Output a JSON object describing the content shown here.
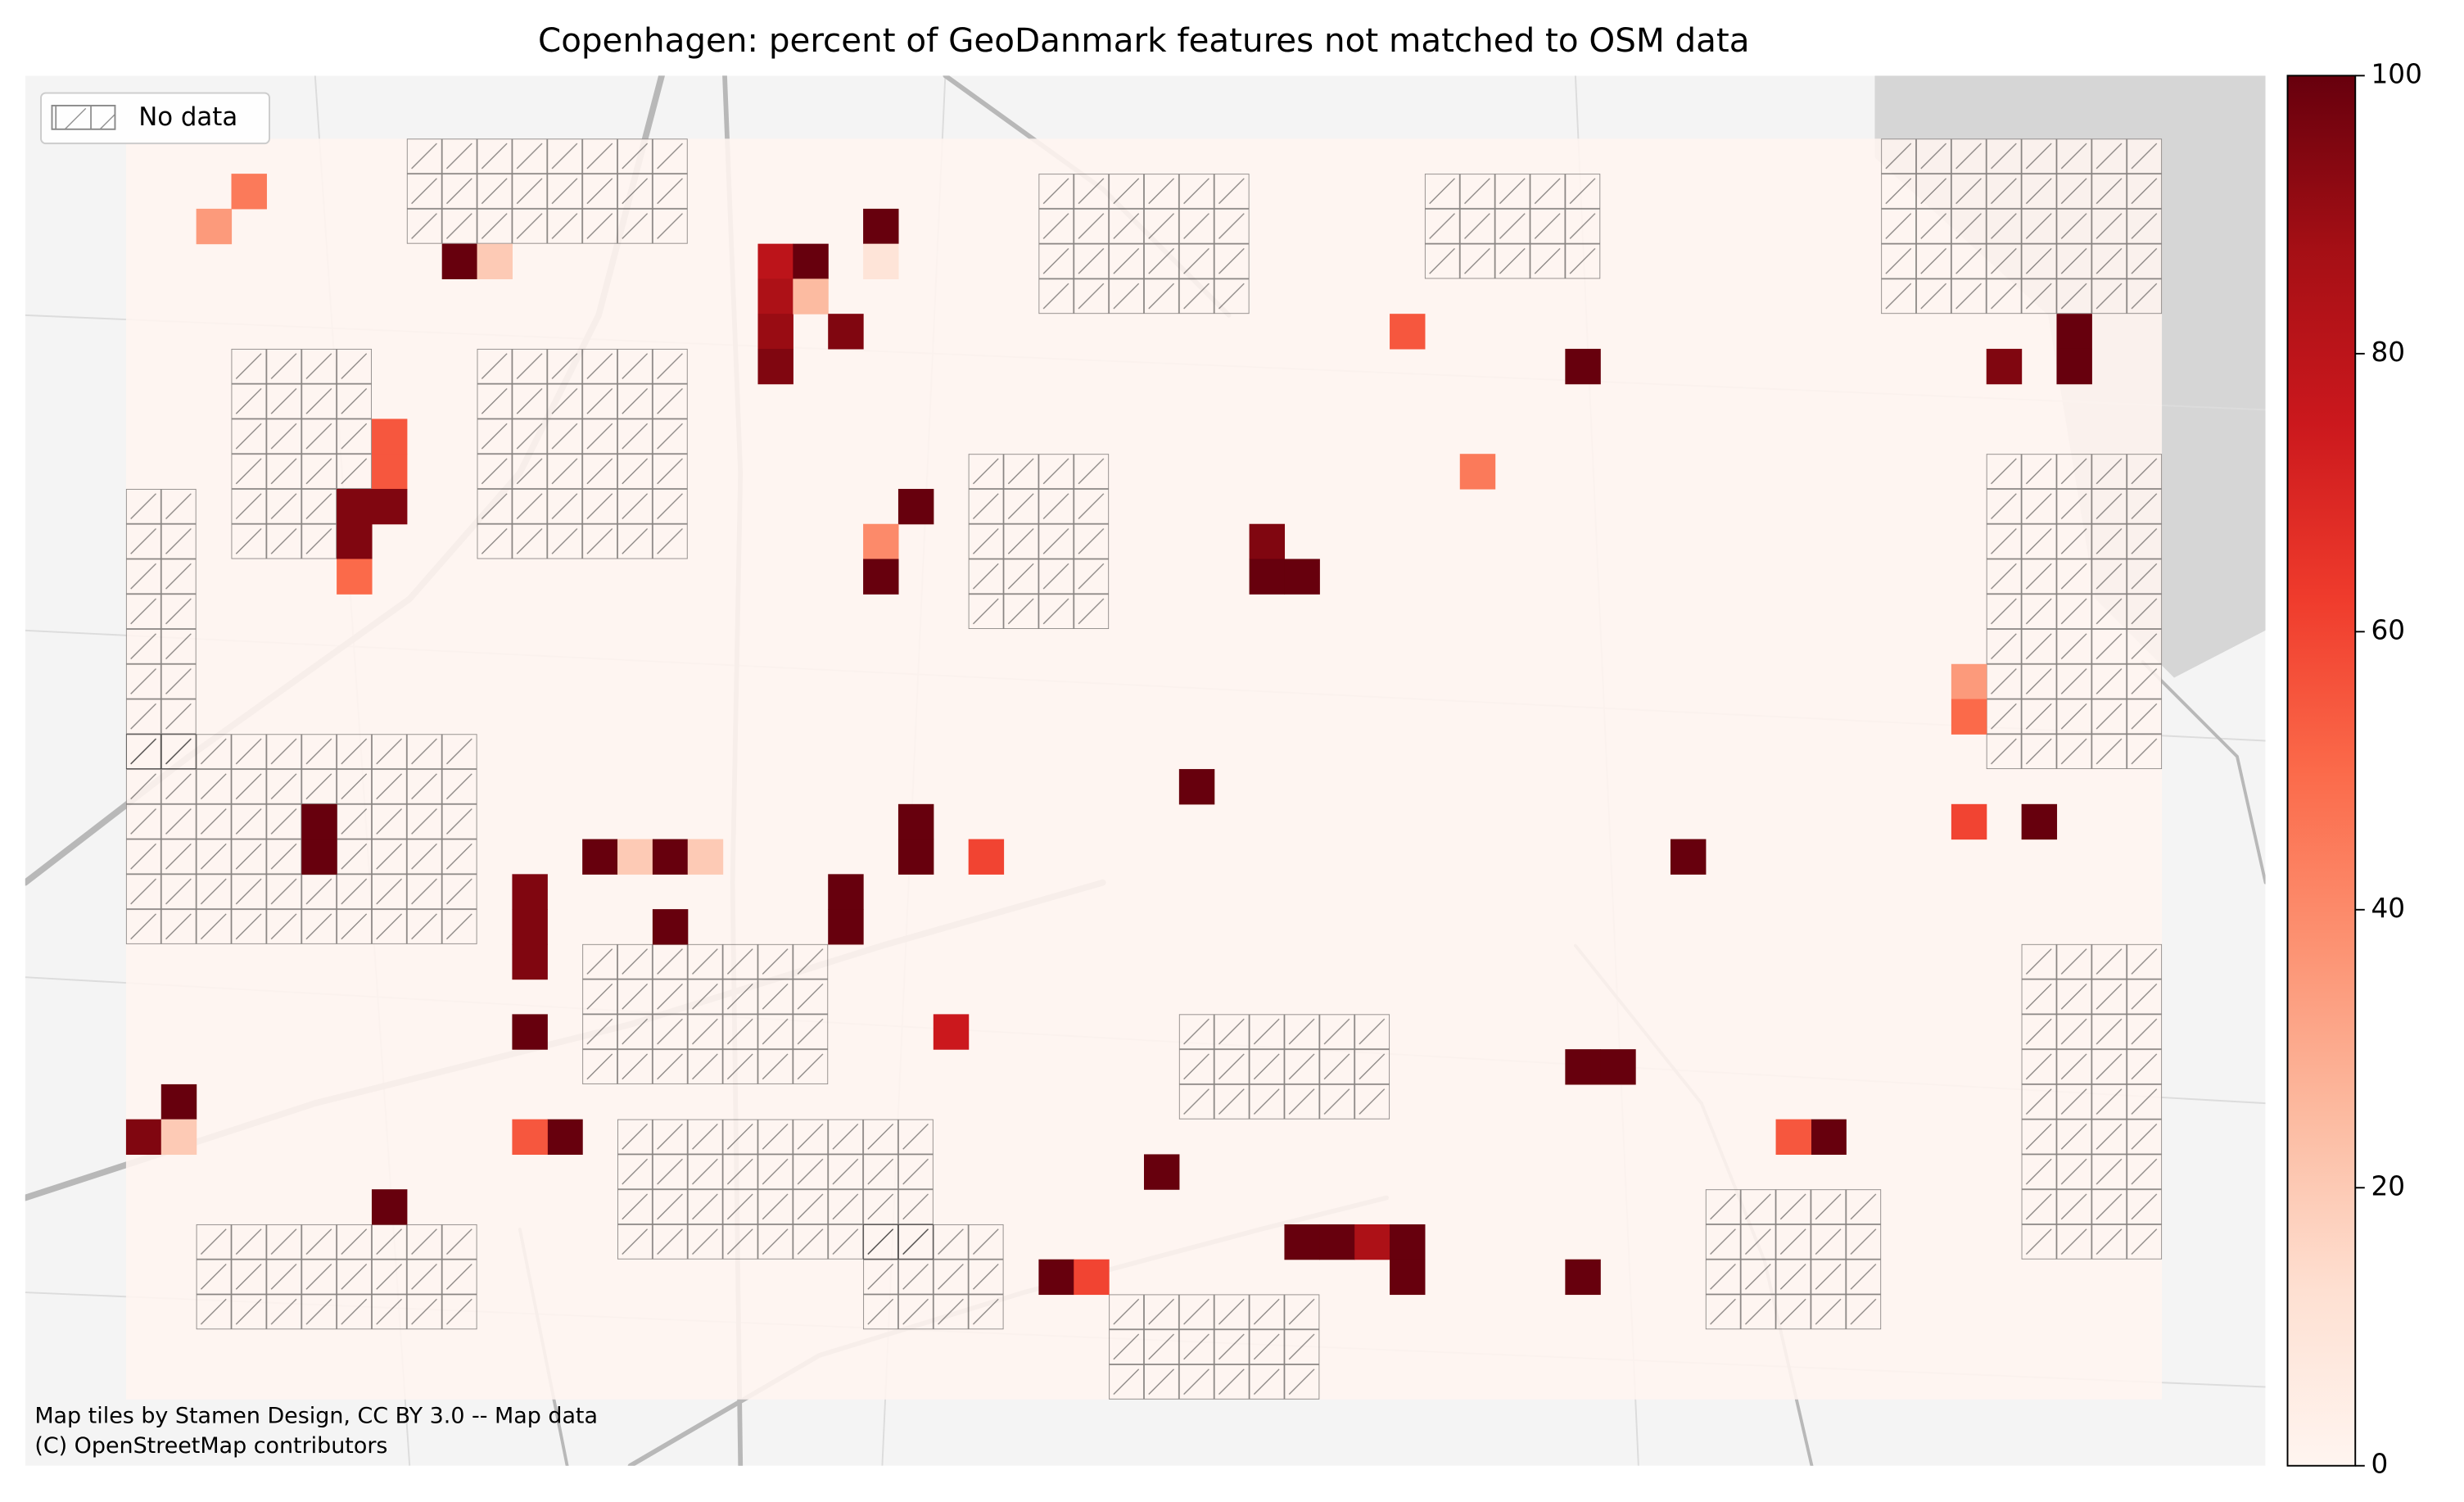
{
  "chart_data": {
    "type": "grid-map",
    "title": "Copenhagen: percent of GeoDanmark features not matched to OSM data",
    "legend_label": "No data",
    "legend_position": "upper left",
    "attribution": [
      "Map tiles by Stamen Design, CC BY 3.0 -- Map data",
      "(C) OpenStreetMap contributors"
    ],
    "grid_cols": 58,
    "grid_rows": 36,
    "colormap": [
      "#fff5f0",
      "#fee0d2",
      "#fcbba1",
      "#fc9272",
      "#fb6a4a",
      "#ef3b2c",
      "#cb181d",
      "#a50f15",
      "#67000d"
    ],
    "ylim": [
      0,
      100
    ],
    "yticks": [
      0,
      20,
      40,
      60,
      80,
      100
    ],
    "cells": [
      {
        "col": 1,
        "row": 27,
        "value": 100
      },
      {
        "col": 0,
        "row": 28,
        "value": 95
      },
      {
        "col": 1,
        "row": 28,
        "value": 20
      },
      {
        "col": 3,
        "row": 1,
        "value": 45
      },
      {
        "col": 2,
        "row": 2,
        "value": 35
      },
      {
        "col": 9,
        "row": 3,
        "value": 100
      },
      {
        "col": 10,
        "row": 3,
        "value": 20
      },
      {
        "col": 18,
        "row": 3,
        "value": 80
      },
      {
        "col": 18,
        "row": 4,
        "value": 85
      },
      {
        "col": 18,
        "row": 5,
        "value": 90
      },
      {
        "col": 18,
        "row": 6,
        "value": 95
      },
      {
        "col": 19,
        "row": 3,
        "value": 100
      },
      {
        "col": 19,
        "row": 4,
        "value": 25
      },
      {
        "col": 20,
        "row": 5,
        "value": 95
      },
      {
        "col": 21,
        "row": 2,
        "value": 100
      },
      {
        "col": 21,
        "row": 3,
        "value": 10
      },
      {
        "col": 7,
        "row": 8,
        "value": 55
      },
      {
        "col": 7,
        "row": 9,
        "value": 55
      },
      {
        "col": 6,
        "row": 10,
        "value": 95
      },
      {
        "col": 7,
        "row": 10,
        "value": 95
      },
      {
        "col": 6,
        "row": 11,
        "value": 95
      },
      {
        "col": 6,
        "row": 12,
        "value": 50
      },
      {
        "col": 22,
        "row": 10,
        "value": 100
      },
      {
        "col": 21,
        "row": 11,
        "value": 40
      },
      {
        "col": 21,
        "row": 12,
        "value": 100
      },
      {
        "col": 32,
        "row": 11,
        "value": 95
      },
      {
        "col": 32,
        "row": 12,
        "value": 100
      },
      {
        "col": 33,
        "row": 12,
        "value": 100
      },
      {
        "col": 36,
        "row": 5,
        "value": 55
      },
      {
        "col": 41,
        "row": 6,
        "value": 100
      },
      {
        "col": 53,
        "row": 6,
        "value": 95
      },
      {
        "col": 55,
        "row": 5,
        "value": 100
      },
      {
        "col": 55,
        "row": 6,
        "value": 100
      },
      {
        "col": 38,
        "row": 9,
        "value": 45
      },
      {
        "col": 5,
        "row": 19,
        "value": 100
      },
      {
        "col": 5,
        "row": 20,
        "value": 100
      },
      {
        "col": 13,
        "row": 20,
        "value": 100
      },
      {
        "col": 14,
        "row": 20,
        "value": 20
      },
      {
        "col": 15,
        "row": 20,
        "value": 100
      },
      {
        "col": 16,
        "row": 20,
        "value": 20
      },
      {
        "col": 11,
        "row": 21,
        "value": 95
      },
      {
        "col": 11,
        "row": 22,
        "value": 95
      },
      {
        "col": 11,
        "row": 23,
        "value": 95
      },
      {
        "col": 11,
        "row": 25,
        "value": 100
      },
      {
        "col": 15,
        "row": 22,
        "value": 100
      },
      {
        "col": 20,
        "row": 21,
        "value": 100
      },
      {
        "col": 20,
        "row": 22,
        "value": 100
      },
      {
        "col": 22,
        "row": 19,
        "value": 100
      },
      {
        "col": 22,
        "row": 20,
        "value": 100
      },
      {
        "col": 24,
        "row": 20,
        "value": 60
      },
      {
        "col": 30,
        "row": 18,
        "value": 100
      },
      {
        "col": 44,
        "row": 20,
        "value": 100
      },
      {
        "col": 54,
        "row": 19,
        "value": 100
      },
      {
        "col": 52,
        "row": 19,
        "value": 60
      },
      {
        "col": 23,
        "row": 25,
        "value": 75
      },
      {
        "col": 41,
        "row": 26,
        "value": 100
      },
      {
        "col": 42,
        "row": 26,
        "value": 100
      },
      {
        "col": 12,
        "row": 28,
        "value": 100
      },
      {
        "col": 11,
        "row": 28,
        "value": 55
      },
      {
        "col": 48,
        "row": 28,
        "value": 100
      },
      {
        "col": 47,
        "row": 28,
        "value": 55
      },
      {
        "col": 29,
        "row": 29,
        "value": 100
      },
      {
        "col": 7,
        "row": 30,
        "value": 100
      },
      {
        "col": 33,
        "row": 31,
        "value": 100
      },
      {
        "col": 34,
        "row": 31,
        "value": 100
      },
      {
        "col": 35,
        "row": 31,
        "value": 85
      },
      {
        "col": 36,
        "row": 31,
        "value": 100
      },
      {
        "col": 36,
        "row": 32,
        "value": 100
      },
      {
        "col": 26,
        "row": 32,
        "value": 100
      },
      {
        "col": 27,
        "row": 32,
        "value": 60
      },
      {
        "col": 41,
        "row": 32,
        "value": 100
      },
      {
        "col": 52,
        "row": 15,
        "value": 35
      },
      {
        "col": 52,
        "row": 16,
        "value": 50
      }
    ],
    "no_data": [
      [
        0,
        10,
        2,
        8
      ],
      [
        3,
        6,
        4,
        6
      ],
      [
        8,
        0,
        8,
        3
      ],
      [
        10,
        6,
        6,
        6
      ],
      [
        0,
        17,
        10,
        6
      ],
      [
        13,
        23,
        7,
        4
      ],
      [
        24,
        9,
        4,
        5
      ],
      [
        26,
        1,
        6,
        4
      ],
      [
        14,
        28,
        9,
        4
      ],
      [
        2,
        31,
        8,
        3
      ],
      [
        30,
        25,
        6,
        3
      ],
      [
        21,
        31,
        4,
        3
      ],
      [
        37,
        1,
        5,
        3
      ],
      [
        50,
        0,
        8,
        5
      ],
      [
        53,
        9,
        5,
        9
      ],
      [
        45,
        30,
        5,
        4
      ],
      [
        54,
        23,
        4,
        9
      ],
      [
        28,
        33,
        6,
        3
      ]
    ]
  }
}
